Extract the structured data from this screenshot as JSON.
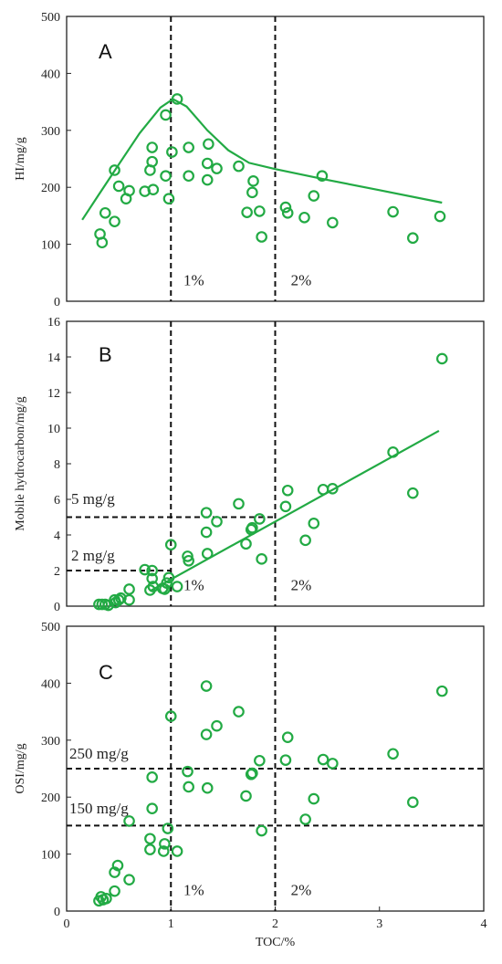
{
  "chart_data": [
    {
      "type": "scatter",
      "panel": "A",
      "xlabel": "",
      "ylabel": "HI/mg/g",
      "xlim": [
        0,
        4
      ],
      "ylim": [
        0,
        500
      ],
      "yticks": [
        0,
        100,
        200,
        300,
        400,
        500
      ],
      "xticks": [],
      "color": "#22aa44",
      "points": [
        [
          0.32,
          118
        ],
        [
          0.34,
          103
        ],
        [
          0.37,
          155
        ],
        [
          0.46,
          140
        ],
        [
          0.46,
          230
        ],
        [
          0.5,
          202
        ],
        [
          0.57,
          180
        ],
        [
          0.6,
          194
        ],
        [
          0.75,
          193
        ],
        [
          0.8,
          230
        ],
        [
          0.82,
          245
        ],
        [
          0.82,
          270
        ],
        [
          0.83,
          196
        ],
        [
          0.95,
          327
        ],
        [
          0.95,
          220
        ],
        [
          0.98,
          180
        ],
        [
          1.01,
          262
        ],
        [
          1.06,
          355
        ],
        [
          1.17,
          270
        ],
        [
          1.17,
          220
        ],
        [
          1.35,
          242
        ],
        [
          1.35,
          213
        ],
        [
          1.36,
          276
        ],
        [
          1.44,
          233
        ],
        [
          1.65,
          237
        ],
        [
          1.73,
          156
        ],
        [
          1.78,
          191
        ],
        [
          1.79,
          211
        ],
        [
          1.85,
          158
        ],
        [
          1.87,
          113
        ],
        [
          2.1,
          165
        ],
        [
          2.12,
          155
        ],
        [
          2.28,
          147
        ],
        [
          2.37,
          185
        ],
        [
          2.45,
          220
        ],
        [
          2.55,
          138
        ],
        [
          3.13,
          157
        ],
        [
          3.32,
          111
        ],
        [
          3.58,
          149
        ]
      ],
      "trend": [
        [
          0.15,
          143
        ],
        [
          0.3,
          185
        ],
        [
          0.5,
          240
        ],
        [
          0.7,
          295
        ],
        [
          0.9,
          340
        ],
        [
          1.02,
          355
        ],
        [
          1.15,
          342
        ],
        [
          1.35,
          300
        ],
        [
          1.55,
          265
        ],
        [
          1.75,
          243
        ],
        [
          2.0,
          232
        ],
        [
          2.5,
          213
        ],
        [
          3.0,
          195
        ],
        [
          3.6,
          173
        ]
      ],
      "vlines": [
        1,
        2
      ],
      "hlines": [],
      "annotations": [
        {
          "text": "1%",
          "x": 1.12,
          "y": 28
        },
        {
          "text": "2%",
          "x": 2.15,
          "y": 28
        }
      ],
      "letter": "A"
    },
    {
      "type": "scatter",
      "panel": "B",
      "xlabel": "",
      "ylabel": "Mobile hydrocarbon/mg/g",
      "xlim": [
        0,
        4
      ],
      "ylim": [
        0,
        16
      ],
      "yticks": [
        0,
        2,
        4,
        6,
        8,
        10,
        12,
        14,
        16
      ],
      "xticks": [],
      "color": "#22aa44",
      "points": [
        [
          0.31,
          0.1
        ],
        [
          0.34,
          0.1
        ],
        [
          0.37,
          0.1
        ],
        [
          0.4,
          0.05
        ],
        [
          0.46,
          0.35
        ],
        [
          0.47,
          0.2
        ],
        [
          0.5,
          0.35
        ],
        [
          0.52,
          0.45
        ],
        [
          0.6,
          0.35
        ],
        [
          0.6,
          0.95
        ],
        [
          0.75,
          2.05
        ],
        [
          0.8,
          0.9
        ],
        [
          0.82,
          1.55
        ],
        [
          0.83,
          1.1
        ],
        [
          0.82,
          2.0
        ],
        [
          0.92,
          1.0
        ],
        [
          0.94,
          0.95
        ],
        [
          0.96,
          1.3
        ],
        [
          0.98,
          1.6
        ],
        [
          1.0,
          3.45
        ],
        [
          1.06,
          1.1
        ],
        [
          1.16,
          2.8
        ],
        [
          1.17,
          2.55
        ],
        [
          1.34,
          5.25
        ],
        [
          1.34,
          4.15
        ],
        [
          1.35,
          2.95
        ],
        [
          1.44,
          4.75
        ],
        [
          1.65,
          5.75
        ],
        [
          1.72,
          3.5
        ],
        [
          1.77,
          4.3
        ],
        [
          1.78,
          4.4
        ],
        [
          1.85,
          4.9
        ],
        [
          1.87,
          2.65
        ],
        [
          2.1,
          5.6
        ],
        [
          2.12,
          6.5
        ],
        [
          2.29,
          3.7
        ],
        [
          2.37,
          4.65
        ],
        [
          2.46,
          6.55
        ],
        [
          2.55,
          6.6
        ],
        [
          3.13,
          8.65
        ],
        [
          3.32,
          6.35
        ],
        [
          3.6,
          13.9
        ]
      ],
      "trend": [
        [
          0.8,
          0.85
        ],
        [
          3.57,
          9.85
        ]
      ],
      "vlines": [
        1,
        2
      ],
      "hlines": [
        {
          "y": 5,
          "x0": 0,
          "x1": 2,
          "label": "5 mg/g"
        },
        {
          "y": 2,
          "x0": 0,
          "x1": 1,
          "label": "2 mg/g"
        }
      ],
      "annotations": [
        {
          "text": "1%",
          "x": 1.12,
          "y": 0.9
        },
        {
          "text": "2%",
          "x": 2.15,
          "y": 0.9
        }
      ],
      "letter": "B"
    },
    {
      "type": "scatter",
      "panel": "C",
      "xlabel": "TOC/%",
      "ylabel": "OSI/mg/g",
      "xlim": [
        0,
        4
      ],
      "ylim": [
        0,
        500
      ],
      "yticks": [
        0,
        100,
        200,
        300,
        400,
        500
      ],
      "xticks": [
        0,
        1,
        2,
        3,
        4
      ],
      "color": "#22aa44",
      "points": [
        [
          0.31,
          18
        ],
        [
          0.33,
          25
        ],
        [
          0.35,
          20
        ],
        [
          0.38,
          22
        ],
        [
          0.46,
          68
        ],
        [
          0.46,
          35
        ],
        [
          0.49,
          80
        ],
        [
          0.6,
          55
        ],
        [
          0.6,
          158
        ],
        [
          0.8,
          108
        ],
        [
          0.8,
          127
        ],
        [
          0.82,
          180
        ],
        [
          0.82,
          235
        ],
        [
          0.93,
          105
        ],
        [
          0.94,
          118
        ],
        [
          0.97,
          145
        ],
        [
          1.0,
          342
        ],
        [
          1.06,
          105
        ],
        [
          1.16,
          245
        ],
        [
          1.17,
          218
        ],
        [
          1.34,
          395
        ],
        [
          1.34,
          310
        ],
        [
          1.35,
          216
        ],
        [
          1.44,
          325
        ],
        [
          1.65,
          350
        ],
        [
          1.72,
          202
        ],
        [
          1.77,
          240
        ],
        [
          1.78,
          242
        ],
        [
          1.85,
          264
        ],
        [
          1.87,
          141
        ],
        [
          2.1,
          265
        ],
        [
          2.12,
          305
        ],
        [
          2.29,
          161
        ],
        [
          2.37,
          197
        ],
        [
          2.46,
          266
        ],
        [
          2.55,
          259
        ],
        [
          3.13,
          276
        ],
        [
          3.32,
          191
        ],
        [
          3.6,
          386
        ]
      ],
      "trend": [],
      "vlines": [
        1,
        2
      ],
      "hlines": [
        {
          "y": 250,
          "x0": 0,
          "x1": 4,
          "label": "250 mg/g"
        },
        {
          "y": 150,
          "x0": 0,
          "x1": 4,
          "label": "150 mg/g"
        }
      ],
      "annotations": [
        {
          "text": "1%",
          "x": 1.12,
          "y": 28
        },
        {
          "text": "2%",
          "x": 2.15,
          "y": 28
        }
      ],
      "letter": "C"
    }
  ]
}
